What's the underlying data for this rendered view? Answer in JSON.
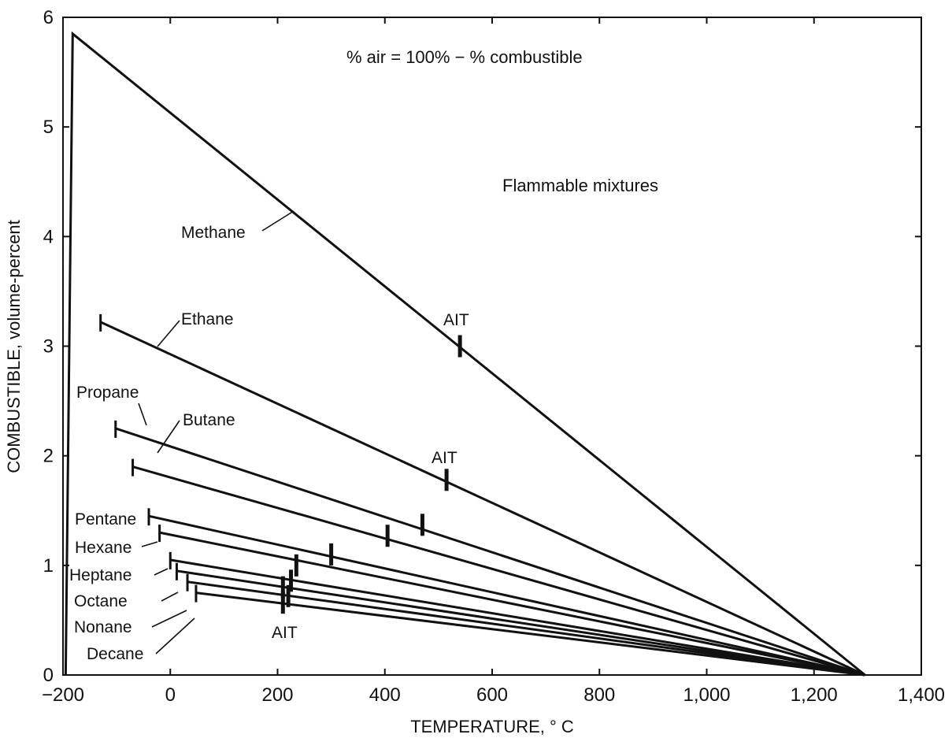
{
  "chart_data": {
    "type": "line",
    "title": "",
    "xlabel": "TEMPERATURE, ° C",
    "ylabel": "COMBUSTIBLE, volume-percent",
    "xlim": [
      -200,
      1400
    ],
    "ylim": [
      0,
      6
    ],
    "x_ticks": [
      -200,
      0,
      200,
      400,
      600,
      800,
      1000,
      1200,
      1400
    ],
    "x_tick_labels": [
      "−200",
      "0",
      "200",
      "400",
      "600",
      "800",
      "1,000",
      "1,200",
      "1,400"
    ],
    "y_ticks": [
      0,
      1,
      2,
      3,
      4,
      5,
      6
    ],
    "y_tick_labels": [
      "0",
      "1",
      "2",
      "3",
      "4",
      "5",
      "6"
    ],
    "grid": false,
    "annotations": {
      "air_note": "% air = 100% − % combustible",
      "region": "Flammable mixtures",
      "ait": "AIT"
    },
    "series": [
      {
        "name": "Methane",
        "x": [
          -195,
          -182,
          1295
        ],
        "y": [
          0,
          5.85,
          0
        ],
        "ait": {
          "x": 540,
          "y": 3.0
        }
      },
      {
        "name": "Ethane",
        "x": [
          -130,
          1295
        ],
        "y": [
          3.22,
          0
        ],
        "ait": {
          "x": 515,
          "y": 1.78
        }
      },
      {
        "name": "Propane",
        "x": [
          -102,
          1295
        ],
        "y": [
          2.25,
          0
        ],
        "ait": {
          "x": 470,
          "y": 1.37
        }
      },
      {
        "name": "Butane",
        "x": [
          -70,
          1295
        ],
        "y": [
          1.9,
          0
        ],
        "ait": {
          "x": 405,
          "y": 1.27
        }
      },
      {
        "name": "Pentane",
        "x": [
          -40,
          1295
        ],
        "y": [
          1.45,
          0
        ],
        "ait": {
          "x": 300,
          "y": 1.1
        }
      },
      {
        "name": "Hexane",
        "x": [
          -20,
          1295
        ],
        "y": [
          1.3,
          0
        ],
        "ait": {
          "x": 235,
          "y": 1.0
        }
      },
      {
        "name": "Heptane",
        "x": [
          0,
          1295
        ],
        "y": [
          1.05,
          0
        ],
        "ait": {
          "x": 225,
          "y": 0.86
        }
      },
      {
        "name": "Octane",
        "x": [
          12,
          1295
        ],
        "y": [
          0.95,
          0
        ],
        "ait": {
          "x": 210,
          "y": 0.8
        }
      },
      {
        "name": "Nonane",
        "x": [
          32,
          1295
        ],
        "y": [
          0.85,
          0
        ],
        "ait": {
          "x": 220,
          "y": 0.72
        }
      },
      {
        "name": "Decane",
        "x": [
          48,
          1295
        ],
        "y": [
          0.75,
          0
        ],
        "ait": {
          "x": 210,
          "y": 0.66
        }
      }
    ]
  }
}
